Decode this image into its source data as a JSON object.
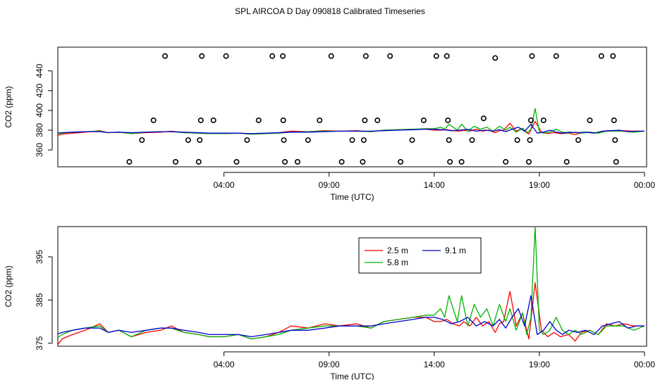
{
  "title": "SPL AIRCOA D  Day 090818  Calibrated Timeseries",
  "chart_data": [
    {
      "type": "scatter",
      "xlabel": "Time (UTC)",
      "ylabel": "CO2 (ppm)",
      "xlim": [
        -3.9,
        24.1
      ],
      "ylim": [
        343,
        464
      ],
      "xticks": [
        4,
        9,
        14,
        19,
        24
      ],
      "xtick_labels": [
        "04:00",
        "09:00",
        "14:00",
        "19:00",
        "00:00"
      ],
      "yticks": [
        360,
        380,
        400,
        420,
        440
      ],
      "scatter_points": [
        {
          "x": -0.5,
          "y": 348
        },
        {
          "x": 0.1,
          "y": 370
        },
        {
          "x": 0.65,
          "y": 390
        },
        {
          "x": 1.2,
          "y": 455
        },
        {
          "x": 1.7,
          "y": 348
        },
        {
          "x": 2.3,
          "y": 370
        },
        {
          "x": 2.8,
          "y": 348
        },
        {
          "x": 2.85,
          "y": 370
        },
        {
          "x": 2.9,
          "y": 390
        },
        {
          "x": 2.95,
          "y": 455
        },
        {
          "x": 3.5,
          "y": 390
        },
        {
          "x": 4.1,
          "y": 455
        },
        {
          "x": 4.6,
          "y": 348
        },
        {
          "x": 5.1,
          "y": 370
        },
        {
          "x": 5.65,
          "y": 390
        },
        {
          "x": 6.3,
          "y": 455
        },
        {
          "x": 6.8,
          "y": 455
        },
        {
          "x": 6.82,
          "y": 390
        },
        {
          "x": 6.85,
          "y": 370
        },
        {
          "x": 6.9,
          "y": 348
        },
        {
          "x": 7.5,
          "y": 348
        },
        {
          "x": 8.0,
          "y": 370
        },
        {
          "x": 8.55,
          "y": 390
        },
        {
          "x": 9.1,
          "y": 455
        },
        {
          "x": 9.6,
          "y": 348
        },
        {
          "x": 10.1,
          "y": 370
        },
        {
          "x": 10.6,
          "y": 348
        },
        {
          "x": 10.65,
          "y": 370
        },
        {
          "x": 10.7,
          "y": 390
        },
        {
          "x": 10.75,
          "y": 455
        },
        {
          "x": 11.3,
          "y": 390
        },
        {
          "x": 11.9,
          "y": 455
        },
        {
          "x": 12.4,
          "y": 348
        },
        {
          "x": 12.95,
          "y": 370
        },
        {
          "x": 13.5,
          "y": 390
        },
        {
          "x": 14.1,
          "y": 455
        },
        {
          "x": 14.6,
          "y": 455
        },
        {
          "x": 14.65,
          "y": 390
        },
        {
          "x": 14.7,
          "y": 370
        },
        {
          "x": 14.75,
          "y": 348
        },
        {
          "x": 15.3,
          "y": 348
        },
        {
          "x": 15.8,
          "y": 370
        },
        {
          "x": 16.35,
          "y": 392
        },
        {
          "x": 16.9,
          "y": 453
        },
        {
          "x": 17.4,
          "y": 348
        },
        {
          "x": 17.95,
          "y": 370
        },
        {
          "x": 18.5,
          "y": 348
        },
        {
          "x": 18.55,
          "y": 370
        },
        {
          "x": 18.6,
          "y": 390
        },
        {
          "x": 18.65,
          "y": 455
        },
        {
          "x": 19.2,
          "y": 390
        },
        {
          "x": 19.8,
          "y": 455
        },
        {
          "x": 20.3,
          "y": 348
        },
        {
          "x": 20.85,
          "y": 370
        },
        {
          "x": 21.4,
          "y": 390
        },
        {
          "x": 21.95,
          "y": 455
        },
        {
          "x": 22.5,
          "y": 455
        },
        {
          "x": 22.55,
          "y": 390
        },
        {
          "x": 22.6,
          "y": 370
        },
        {
          "x": 22.65,
          "y": 348
        }
      ],
      "series": [
        {
          "name": "2.5 m",
          "color": "#ff0000",
          "x": [
            -4,
            -3.7,
            -3.2,
            -2.6,
            -1.9,
            -1.5,
            -1.0,
            -0.4,
            0.3,
            1.0,
            1.5,
            2.1,
            2.8,
            3.3,
            4.0,
            4.7,
            5.3,
            6.0,
            6.6,
            7.2,
            8.0,
            8.8,
            9.5,
            10.3,
            11.0,
            11.6,
            12.3,
            13.0,
            13.6,
            14.0,
            14.3,
            14.6,
            14.9,
            15.2,
            15.4,
            15.7,
            16.0,
            16.3,
            16.6,
            16.9,
            17.1,
            17.3,
            17.6,
            17.9,
            18.2,
            18.5,
            18.8,
            19.1,
            19.4,
            19.7,
            20.0,
            20.4,
            20.7,
            21.0,
            21.4,
            21.8,
            22.2,
            22.6,
            23.0,
            23.5,
            24.0
          ],
          "values": [
            374,
            376,
            377,
            378,
            379.5,
            377.5,
            378,
            376.5,
            377.5,
            378,
            379,
            377.5,
            377,
            376.5,
            376.5,
            377,
            376,
            376.5,
            377.5,
            379,
            378.5,
            379.5,
            379,
            379.5,
            378.5,
            380,
            380.5,
            381,
            381,
            380,
            380,
            380.5,
            379.5,
            379,
            380,
            379,
            381,
            379,
            380,
            377.5,
            379.5,
            380,
            387,
            379,
            382,
            376,
            389,
            378,
            376.5,
            377.5,
            376.5,
            377,
            375.5,
            377.5,
            378,
            377,
            379.5,
            379,
            379.5,
            379,
            379
          ]
        },
        {
          "name": "5.8 m",
          "color": "#00b400",
          "x": [
            -4,
            -3.7,
            -3.2,
            -2.6,
            -1.9,
            -1.5,
            -1.0,
            -0.4,
            0.3,
            1.0,
            1.5,
            2.1,
            2.8,
            3.3,
            4.0,
            4.7,
            5.3,
            6.0,
            6.6,
            7.2,
            8.0,
            8.8,
            9.5,
            10.3,
            11.0,
            11.6,
            12.3,
            13.0,
            13.6,
            14.0,
            14.3,
            14.5,
            14.7,
            14.9,
            15.1,
            15.3,
            15.6,
            15.9,
            16.2,
            16.5,
            16.8,
            17.1,
            17.4,
            17.6,
            17.9,
            18.2,
            18.4,
            18.6,
            18.8,
            19.0,
            19.2,
            19.5,
            19.8,
            20.1,
            20.4,
            20.7,
            21.0,
            21.4,
            21.8,
            22.2,
            22.6,
            23.0,
            23.5,
            24.0
          ],
          "values": [
            376,
            377,
            378,
            378.5,
            379,
            377.5,
            378,
            376.5,
            378,
            378.5,
            378.5,
            377.5,
            377,
            376.5,
            376.5,
            377,
            376,
            376.5,
            377,
            378,
            378.5,
            379,
            379,
            379,
            378.5,
            380,
            380.5,
            381,
            381.5,
            381.5,
            383,
            381,
            386,
            383,
            380,
            386,
            379,
            384,
            381,
            383,
            379,
            384,
            380,
            383,
            378,
            382,
            377,
            381,
            402,
            378,
            377,
            378,
            381,
            378,
            377,
            378,
            377,
            378,
            377,
            379,
            379,
            379,
            378,
            379
          ]
        },
        {
          "name": "9.1 m",
          "color": "#0000cc",
          "x": [
            -4,
            -3.7,
            -3.2,
            -2.6,
            -1.9,
            -1.5,
            -1.0,
            -0.4,
            0.3,
            1.0,
            1.5,
            2.1,
            2.8,
            3.3,
            4.0,
            4.7,
            5.3,
            6.0,
            6.6,
            7.2,
            8.0,
            8.8,
            9.5,
            10.3,
            11.0,
            11.6,
            12.3,
            13.0,
            13.6,
            14.0,
            14.4,
            14.8,
            15.2,
            15.6,
            16.0,
            16.4,
            16.8,
            17.1,
            17.4,
            17.7,
            18.0,
            18.3,
            18.6,
            18.9,
            19.2,
            19.5,
            19.8,
            20.1,
            20.4,
            20.8,
            21.2,
            21.6,
            22.0,
            22.4,
            22.8,
            23.2,
            23.6,
            24.0
          ],
          "values": [
            377,
            377.5,
            378,
            378.5,
            378.5,
            377.5,
            378,
            377.5,
            378,
            378.5,
            378.5,
            378,
            377.5,
            377,
            377,
            377,
            376.5,
            377,
            377.5,
            378,
            378,
            378.5,
            379,
            379,
            379,
            379.5,
            380,
            380.5,
            381,
            381,
            380.5,
            379.5,
            380,
            381,
            379,
            380,
            379,
            380.5,
            378.5,
            381,
            383,
            379,
            386,
            377,
            378,
            380,
            378,
            377,
            378,
            377.5,
            378,
            377,
            379,
            379.5,
            380,
            378.5,
            379,
            379
          ]
        }
      ]
    },
    {
      "type": "line",
      "xlabel": "Time (UTC)",
      "ylabel": "CO2 (ppm)",
      "xlim": [
        -3.9,
        24.1
      ],
      "ylim": [
        374.3,
        402
      ],
      "xticks": [
        4,
        9,
        14,
        19,
        24
      ],
      "xtick_labels": [
        "04:00",
        "09:00",
        "14:00",
        "19:00",
        "00:00"
      ],
      "yticks": [
        375,
        385,
        395
      ],
      "legend": "top-center",
      "legend_order": [
        0,
        2,
        1
      ]
    }
  ]
}
